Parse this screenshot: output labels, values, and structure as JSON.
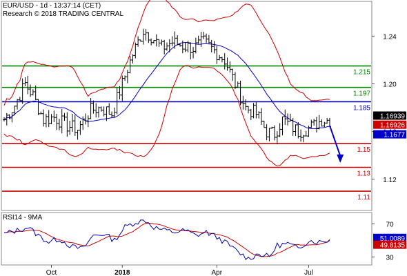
{
  "header": {
    "line1": "EUR/USD - 1d - 13:37:14 (CET)",
    "line2": "Research © 2018 TRADING CENTRAL"
  },
  "colors": {
    "candle": "#000000",
    "bollinger": "#cc0000",
    "ma": "#0000cc",
    "support": "#cc0000",
    "resistance": "#008800",
    "pivot": "#0000aa",
    "arrow": "#0000cc",
    "rsi": "#0000aa",
    "rsi_ma": "#cc0000",
    "last_price_bg": "#000000",
    "boll_label_bg": "#cc0000",
    "ma_label_bg": "#0000cc"
  },
  "chart_data": [
    {
      "type": "candlestick",
      "ylim": [
        1.095,
        1.268
      ],
      "y_ticks": [
        1.24,
        1.2,
        1.16,
        1.12
      ],
      "x_labels": [
        {
          "label": "Oct",
          "index": 18
        },
        {
          "label": "2018",
          "index": 45
        },
        {
          "label": "Apr",
          "index": 81
        },
        {
          "label": "Jul",
          "index": 116
        }
      ],
      "n": 125,
      "levels": [
        {
          "label": "1.215",
          "value": 1.215,
          "kind": "resistance"
        },
        {
          "label": "1.197",
          "value": 1.197,
          "kind": "resistance"
        },
        {
          "label": "1.185",
          "value": 1.185,
          "kind": "pivot"
        },
        {
          "label": "1.15",
          "value": 1.15,
          "kind": "support"
        },
        {
          "label": "1.13",
          "value": 1.13,
          "kind": "support"
        },
        {
          "label": "1.11",
          "value": 1.11,
          "kind": "support"
        }
      ],
      "close_anchors": [
        [
          0,
          1.17
        ],
        [
          4,
          1.182
        ],
        [
          8,
          1.2
        ],
        [
          11,
          1.19
        ],
        [
          15,
          1.17
        ],
        [
          19,
          1.172
        ],
        [
          24,
          1.165
        ],
        [
          28,
          1.162
        ],
        [
          33,
          1.178
        ],
        [
          37,
          1.18
        ],
        [
          41,
          1.175
        ],
        [
          45,
          1.2
        ],
        [
          49,
          1.225
        ],
        [
          53,
          1.245
        ],
        [
          56,
          1.24
        ],
        [
          60,
          1.23
        ],
        [
          64,
          1.235
        ],
        [
          68,
          1.232
        ],
        [
          72,
          1.23
        ],
        [
          76,
          1.235
        ],
        [
          80,
          1.228
        ],
        [
          84,
          1.22
        ],
        [
          88,
          1.2
        ],
        [
          92,
          1.18
        ],
        [
          96,
          1.175
        ],
        [
          100,
          1.16
        ],
        [
          103,
          1.158
        ],
        [
          106,
          1.17
        ],
        [
          109,
          1.165
        ],
        [
          112,
          1.16
        ],
        [
          115,
          1.162
        ],
        [
          118,
          1.165
        ],
        [
          121,
          1.17
        ],
        [
          124,
          1.1694
        ]
      ],
      "last_price": {
        "label": "1.16939",
        "value": 1.16939
      },
      "bollinger_last": {
        "label": "1.16926",
        "value": 1.16926
      },
      "ma_last": {
        "label": "1.1677",
        "value": 1.1677
      },
      "forecast_arrow": {
        "from_index": 124,
        "from_value": 1.165,
        "to_index": 128,
        "to_value": 1.135
      }
    },
    {
      "type": "line",
      "title": "RSI14 - 9MA",
      "ylim": [
        22,
        82
      ],
      "y_ticks": [
        70,
        30
      ],
      "rsi_anchors": [
        [
          0,
          58
        ],
        [
          5,
          62
        ],
        [
          9,
          66
        ],
        [
          13,
          56
        ],
        [
          17,
          48
        ],
        [
          21,
          52
        ],
        [
          26,
          42
        ],
        [
          30,
          40
        ],
        [
          34,
          56
        ],
        [
          38,
          58
        ],
        [
          42,
          50
        ],
        [
          46,
          66
        ],
        [
          50,
          72
        ],
        [
          54,
          74
        ],
        [
          57,
          66
        ],
        [
          61,
          62
        ],
        [
          65,
          60
        ],
        [
          69,
          62
        ],
        [
          73,
          56
        ],
        [
          77,
          60
        ],
        [
          81,
          54
        ],
        [
          85,
          46
        ],
        [
          89,
          36
        ],
        [
          93,
          28
        ],
        [
          97,
          34
        ],
        [
          101,
          30
        ],
        [
          104,
          44
        ],
        [
          108,
          46
        ],
        [
          112,
          40
        ],
        [
          116,
          50
        ],
        [
          120,
          48
        ],
        [
          124,
          51.0089
        ]
      ],
      "rsi_last": {
        "label": "51.0089",
        "value": 51.0089
      },
      "ma_last": {
        "label": "49.8135",
        "value": 49.8135
      }
    }
  ]
}
